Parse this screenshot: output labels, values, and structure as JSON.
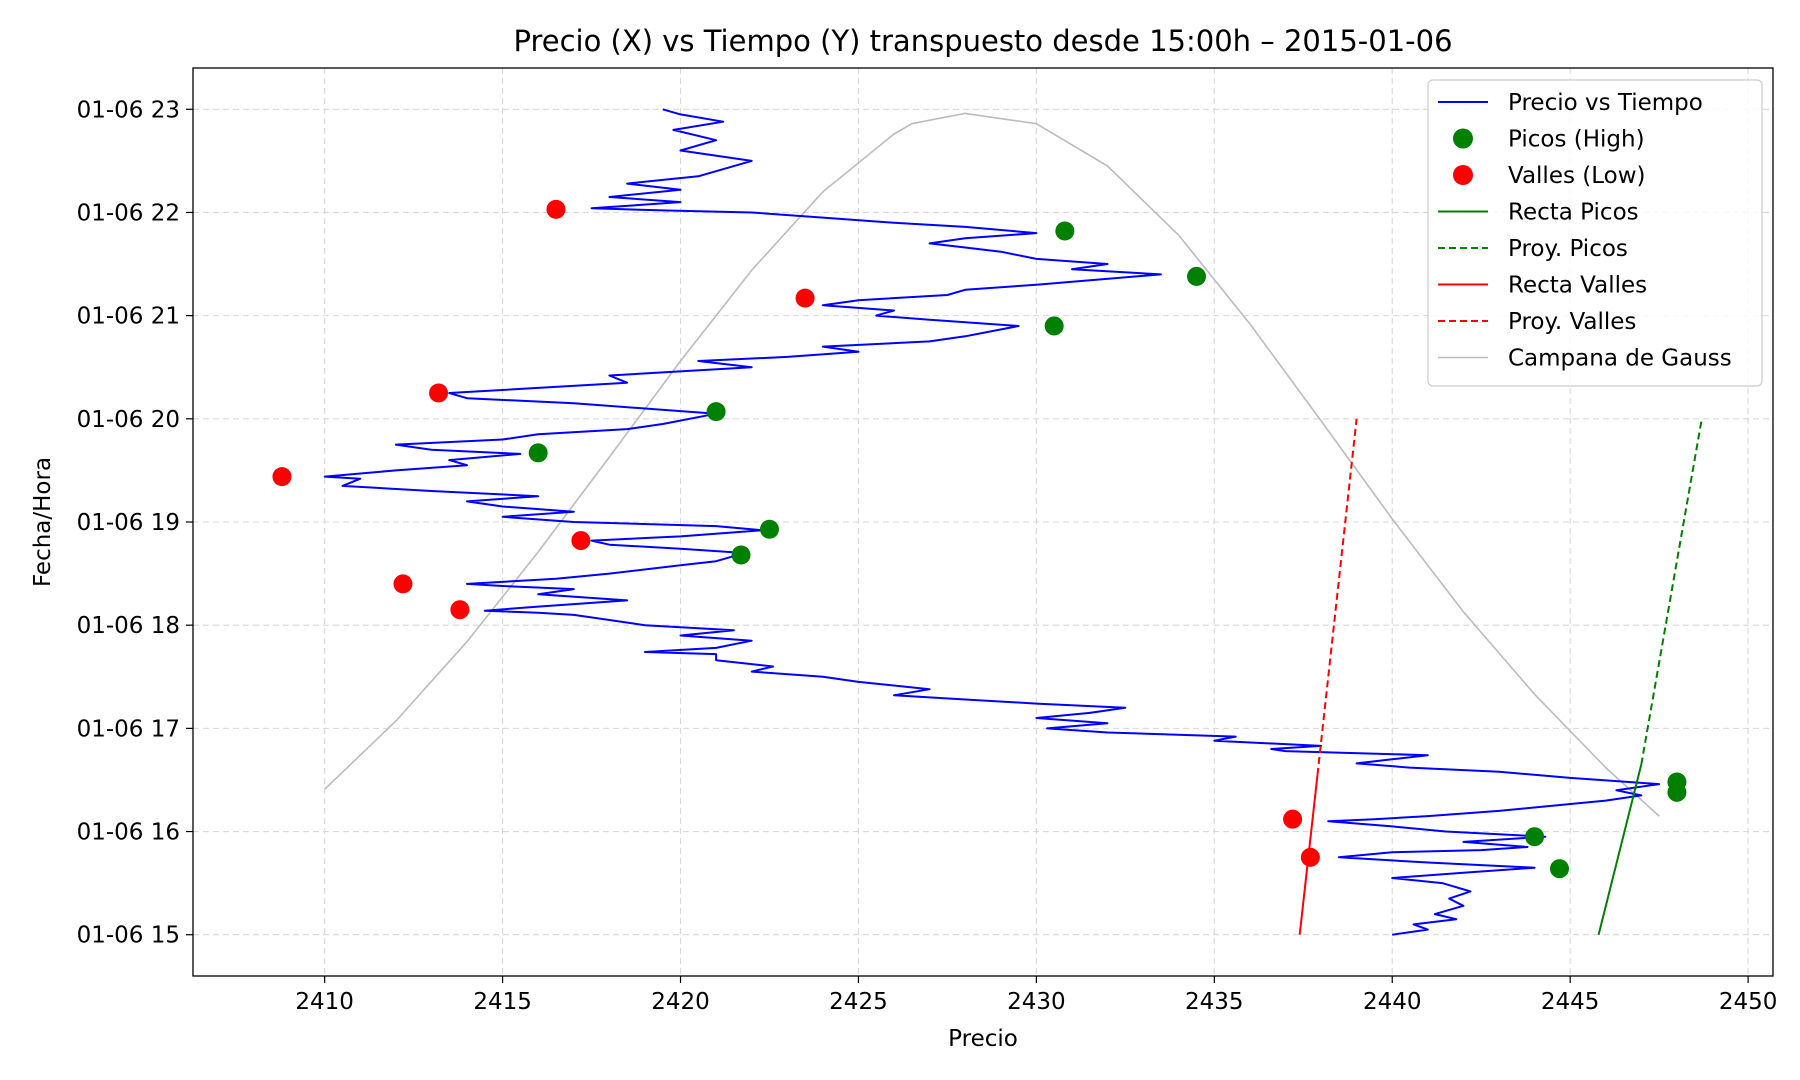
{
  "chart_data": {
    "type": "line",
    "title": "Precio (X) vs Tiempo (Y) transpuesto desde 15:00h – 2015-01-06",
    "xlabel": "Precio",
    "ylabel": "Fecha/Hora",
    "xlim": [
      2406.3,
      2450.7
    ],
    "ylim": [
      14.6,
      23.4
    ],
    "x_ticks": [
      2410,
      2415,
      2420,
      2425,
      2430,
      2435,
      2440,
      2445,
      2450
    ],
    "y_ticks": [
      {
        "value": 15,
        "label": "01-06 15"
      },
      {
        "value": 16,
        "label": "01-06 16"
      },
      {
        "value": 17,
        "label": "01-06 17"
      },
      {
        "value": 18,
        "label": "01-06 18"
      },
      {
        "value": 19,
        "label": "01-06 19"
      },
      {
        "value": 20,
        "label": "01-06 20"
      },
      {
        "value": 21,
        "label": "01-06 21"
      },
      {
        "value": 22,
        "label": "01-06 22"
      },
      {
        "value": 23,
        "label": "01-06 23"
      }
    ],
    "grid": true,
    "legend_position": "top-right",
    "series": [
      {
        "name": "Precio vs Tiempo",
        "kind": "line",
        "color": "#0000ff",
        "points": [
          [
            2440.0,
            15.0
          ],
          [
            2441.0,
            15.05
          ],
          [
            2440.6,
            15.1
          ],
          [
            2441.8,
            15.15
          ],
          [
            2441.2,
            15.2
          ],
          [
            2442.0,
            15.28
          ],
          [
            2441.6,
            15.35
          ],
          [
            2442.2,
            15.42
          ],
          [
            2441.4,
            15.5
          ],
          [
            2440.0,
            15.55
          ],
          [
            2442.0,
            15.6
          ],
          [
            2444.0,
            15.65
          ],
          [
            2441.0,
            15.7
          ],
          [
            2438.5,
            15.75
          ],
          [
            2440.0,
            15.8
          ],
          [
            2442.5,
            15.82
          ],
          [
            2443.8,
            15.85
          ],
          [
            2442.0,
            15.9
          ],
          [
            2444.3,
            15.95
          ],
          [
            2441.5,
            16.0
          ],
          [
            2440.0,
            16.05
          ],
          [
            2438.2,
            16.1
          ],
          [
            2439.5,
            16.12
          ],
          [
            2441.0,
            16.15
          ],
          [
            2443.0,
            16.2
          ],
          [
            2444.5,
            16.25
          ],
          [
            2446.0,
            16.3
          ],
          [
            2447.0,
            16.35
          ],
          [
            2446.3,
            16.4
          ],
          [
            2447.5,
            16.46
          ],
          [
            2445.0,
            16.52
          ],
          [
            2443.0,
            16.58
          ],
          [
            2440.5,
            16.62
          ],
          [
            2439.0,
            16.66
          ],
          [
            2440.0,
            16.7
          ],
          [
            2441.0,
            16.74
          ],
          [
            2437.0,
            16.78
          ],
          [
            2436.6,
            16.8
          ],
          [
            2438.0,
            16.83
          ],
          [
            2435.0,
            16.88
          ],
          [
            2435.6,
            16.92
          ],
          [
            2432.0,
            16.96
          ],
          [
            2430.3,
            17.0
          ],
          [
            2432.0,
            17.05
          ],
          [
            2430.0,
            17.1
          ],
          [
            2431.5,
            17.15
          ],
          [
            2432.5,
            17.2
          ],
          [
            2430.0,
            17.24
          ],
          [
            2428.0,
            17.28
          ],
          [
            2426.0,
            17.32
          ],
          [
            2427.0,
            17.38
          ],
          [
            2425.0,
            17.45
          ],
          [
            2424.0,
            17.5
          ],
          [
            2422.0,
            17.55
          ],
          [
            2422.6,
            17.6
          ],
          [
            2421.0,
            17.66
          ],
          [
            2421.0,
            17.72
          ],
          [
            2419.0,
            17.74
          ],
          [
            2421.0,
            17.78
          ],
          [
            2422.0,
            17.85
          ],
          [
            2420.0,
            17.9
          ],
          [
            2421.5,
            17.95
          ],
          [
            2420.0,
            17.98
          ],
          [
            2419.0,
            18.0
          ],
          [
            2418.0,
            18.05
          ],
          [
            2417.0,
            18.1
          ],
          [
            2416.0,
            18.12
          ],
          [
            2414.5,
            18.14
          ],
          [
            2416.0,
            18.18
          ],
          [
            2418.5,
            18.24
          ],
          [
            2416.0,
            18.3
          ],
          [
            2417.0,
            18.35
          ],
          [
            2415.0,
            18.38
          ],
          [
            2414.0,
            18.4
          ],
          [
            2416.5,
            18.45
          ],
          [
            2418.0,
            18.5
          ],
          [
            2420.0,
            18.58
          ],
          [
            2421.0,
            18.62
          ],
          [
            2421.8,
            18.7
          ],
          [
            2420.0,
            18.74
          ],
          [
            2418.0,
            18.78
          ],
          [
            2417.5,
            18.82
          ],
          [
            2420.0,
            18.86
          ],
          [
            2422.3,
            18.92
          ],
          [
            2421.0,
            18.96
          ],
          [
            2417.0,
            19.0
          ],
          [
            2415.0,
            19.05
          ],
          [
            2417.0,
            19.1
          ],
          [
            2415.0,
            19.15
          ],
          [
            2414.0,
            19.2
          ],
          [
            2416.0,
            19.25
          ],
          [
            2413.0,
            19.3
          ],
          [
            2410.5,
            19.35
          ],
          [
            2411.0,
            19.42
          ],
          [
            2410.0,
            19.44
          ],
          [
            2412.0,
            19.5
          ],
          [
            2414.0,
            19.55
          ],
          [
            2413.5,
            19.6
          ],
          [
            2415.5,
            19.66
          ],
          [
            2413.0,
            19.7
          ],
          [
            2412.0,
            19.75
          ],
          [
            2415.0,
            19.8
          ],
          [
            2416.0,
            19.85
          ],
          [
            2418.5,
            19.9
          ],
          [
            2419.5,
            19.95
          ],
          [
            2421.0,
            20.05
          ],
          [
            2419.0,
            20.1
          ],
          [
            2417.0,
            20.15
          ],
          [
            2414.0,
            20.2
          ],
          [
            2413.5,
            20.25
          ],
          [
            2416.0,
            20.3
          ],
          [
            2418.5,
            20.35
          ],
          [
            2418.0,
            20.42
          ],
          [
            2419.5,
            20.45
          ],
          [
            2422.0,
            20.5
          ],
          [
            2420.5,
            20.56
          ],
          [
            2423.0,
            20.6
          ],
          [
            2425.0,
            20.65
          ],
          [
            2424.0,
            20.7
          ],
          [
            2427.0,
            20.75
          ],
          [
            2428.0,
            20.8
          ],
          [
            2429.5,
            20.9
          ],
          [
            2427.0,
            20.96
          ],
          [
            2425.5,
            21.0
          ],
          [
            2426.0,
            21.05
          ],
          [
            2424.0,
            21.1
          ],
          [
            2425.0,
            21.15
          ],
          [
            2427.5,
            21.2
          ],
          [
            2428.0,
            21.25
          ],
          [
            2430.0,
            21.3
          ],
          [
            2433.5,
            21.4
          ],
          [
            2431.0,
            21.45
          ],
          [
            2432.0,
            21.5
          ],
          [
            2430.0,
            21.55
          ],
          [
            2429.0,
            21.62
          ],
          [
            2428.0,
            21.66
          ],
          [
            2427.0,
            21.7
          ],
          [
            2428.0,
            21.75
          ],
          [
            2430.0,
            21.8
          ],
          [
            2428.0,
            21.86
          ],
          [
            2426.0,
            21.9
          ],
          [
            2424.0,
            21.95
          ],
          [
            2422.0,
            22.0
          ],
          [
            2419.5,
            22.02
          ],
          [
            2417.5,
            22.04
          ],
          [
            2420.0,
            22.1
          ],
          [
            2418.0,
            22.15
          ],
          [
            2420.0,
            22.22
          ],
          [
            2418.5,
            22.28
          ],
          [
            2420.5,
            22.35
          ],
          [
            2422.0,
            22.5
          ],
          [
            2420.0,
            22.6
          ],
          [
            2421.0,
            22.7
          ],
          [
            2419.8,
            22.8
          ],
          [
            2421.2,
            22.88
          ],
          [
            2420.0,
            22.95
          ],
          [
            2419.5,
            23.0
          ]
        ]
      },
      {
        "name": "Picos (High)",
        "kind": "scatter",
        "color": "#008000",
        "points": [
          [
            2444.7,
            15.64
          ],
          [
            2444.0,
            15.95
          ],
          [
            2448.0,
            16.38
          ],
          [
            2448.0,
            16.48
          ],
          [
            2421.7,
            18.68
          ],
          [
            2422.5,
            18.93
          ],
          [
            2416.0,
            19.67
          ],
          [
            2421.0,
            20.07
          ],
          [
            2430.5,
            20.9
          ],
          [
            2434.5,
            21.38
          ],
          [
            2430.8,
            21.82
          ]
        ]
      },
      {
        "name": "Valles (Low)",
        "kind": "scatter",
        "color": "#ff0000",
        "points": [
          [
            2437.7,
            15.75
          ],
          [
            2437.2,
            16.12
          ],
          [
            2413.8,
            18.15
          ],
          [
            2412.2,
            18.4
          ],
          [
            2417.2,
            18.82
          ],
          [
            2408.8,
            19.44
          ],
          [
            2413.2,
            20.25
          ],
          [
            2423.5,
            21.17
          ],
          [
            2416.5,
            22.03
          ]
        ]
      },
      {
        "name": "Recta Picos",
        "kind": "line",
        "color": "#008000",
        "points": [
          [
            2445.8,
            15.0
          ],
          [
            2447.0,
            16.65
          ]
        ]
      },
      {
        "name": "Proy. Picos",
        "kind": "dashed",
        "color": "#008000",
        "points": [
          [
            2447.0,
            16.65
          ],
          [
            2448.7,
            20.0
          ]
        ]
      },
      {
        "name": "Recta Valles",
        "kind": "line",
        "color": "#ff0000",
        "points": [
          [
            2437.4,
            15.0
          ],
          [
            2437.9,
            16.55
          ]
        ]
      },
      {
        "name": "Proy. Valles",
        "kind": "dashed",
        "color": "#ff0000",
        "points": [
          [
            2437.9,
            16.55
          ],
          [
            2439.0,
            20.0
          ]
        ]
      },
      {
        "name": "Campana de Gauss",
        "kind": "curve",
        "color": "#bbbbbb",
        "points": [
          [
            2410.0,
            16.41
          ],
          [
            2412.0,
            17.07
          ],
          [
            2414.0,
            17.84
          ],
          [
            2416.0,
            18.71
          ],
          [
            2418.0,
            19.63
          ],
          [
            2420.0,
            20.56
          ],
          [
            2422.0,
            21.44
          ],
          [
            2424.0,
            22.2
          ],
          [
            2426.0,
            22.76
          ],
          [
            2426.5,
            22.86
          ],
          [
            2428.0,
            22.96
          ],
          [
            2430.0,
            22.86
          ],
          [
            2432.0,
            22.45
          ],
          [
            2434.0,
            21.78
          ],
          [
            2436.0,
            20.92
          ],
          [
            2438.0,
            19.98
          ],
          [
            2440.0,
            19.03
          ],
          [
            2442.0,
            18.13
          ],
          [
            2444.0,
            17.33
          ],
          [
            2446.0,
            16.62
          ],
          [
            2447.5,
            16.15
          ]
        ]
      }
    ]
  }
}
